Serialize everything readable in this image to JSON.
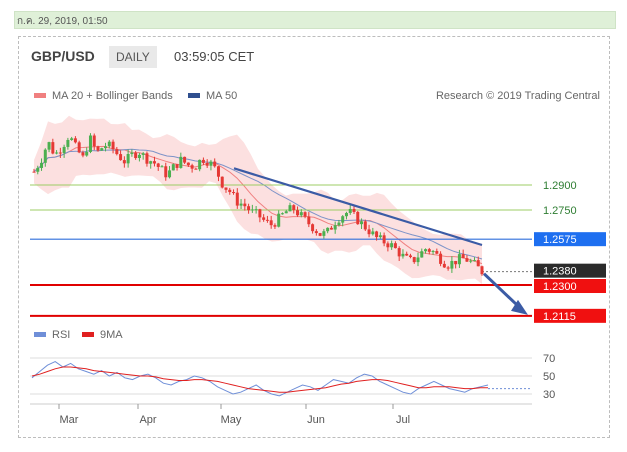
{
  "date_bar": {
    "text": "ก.ค. 29, 2019, 01:50"
  },
  "header": {
    "pair": "GBP/USD",
    "period": "DAILY",
    "time": "03:59:05 CET"
  },
  "legend": {
    "ma20": {
      "label": "MA 20 + Bollinger Bands",
      "color": "#f08080"
    },
    "ma50": {
      "label": "MA 50",
      "color": "#2f4f8f"
    },
    "credit": "Research © 2019 Trading Central"
  },
  "rsi_legend": {
    "rsi": {
      "label": "RSI",
      "color": "#6f8fd8"
    },
    "ma9": {
      "label": "9MA",
      "color": "#e02020"
    }
  },
  "chart_data": {
    "type": "candlestick",
    "xlabel": "",
    "ylabel": "",
    "months": [
      "Mar",
      "Apr",
      "May",
      "Jun",
      "Jul"
    ],
    "levels": [
      {
        "value": "1.2900",
        "kind": "green-line"
      },
      {
        "value": "1.2750",
        "kind": "green-line"
      },
      {
        "value": "1.2575",
        "kind": "blue-line"
      },
      {
        "value": "1.2380",
        "kind": "last-price"
      },
      {
        "value": "1.2300",
        "kind": "red-line"
      },
      {
        "value": "1.2115",
        "kind": "red-line"
      }
    ],
    "colors": {
      "up": "#4caf50",
      "down": "#e53935",
      "trend": "#3b5ba5",
      "band": "#fbd5d5"
    },
    "close_path": [
      1.298,
      1.305,
      1.316,
      1.308,
      1.313,
      1.32,
      1.312,
      1.306,
      1.318,
      1.309,
      1.314,
      1.313,
      1.308,
      1.304,
      1.308,
      1.31,
      1.306,
      1.304,
      1.3,
      1.296,
      1.301,
      1.305,
      1.302,
      1.301,
      1.306,
      1.304,
      1.299,
      1.29,
      1.286,
      1.28,
      1.278,
      1.274,
      1.272,
      1.268,
      1.266,
      1.27,
      1.274,
      1.276,
      1.272,
      1.268,
      1.264,
      1.26,
      1.262,
      1.268,
      1.272,
      1.274,
      1.27,
      1.266,
      1.262,
      1.258,
      1.256,
      1.254,
      1.25,
      1.246,
      1.244,
      1.248,
      1.252,
      1.25,
      1.246,
      1.242,
      1.244,
      1.246,
      1.245,
      1.242,
      1.238
    ],
    "trendline": {
      "from": {
        "month": "May",
        "value": 1.3
      },
      "to": {
        "month": "Jul",
        "value": 1.254
      }
    },
    "projection": {
      "from": 1.238,
      "to": 1.2115
    },
    "rsi": {
      "ticks": [
        "70",
        "50",
        "30"
      ],
      "values": [
        48,
        55,
        62,
        66,
        60,
        64,
        58,
        55,
        52,
        56,
        50,
        54,
        48,
        46,
        50,
        52,
        48,
        42,
        40,
        44,
        46,
        50,
        48,
        44,
        38,
        34,
        30,
        32,
        36,
        40,
        34,
        30,
        28,
        32,
        36,
        40,
        38,
        34,
        40,
        46,
        44,
        42,
        48,
        52,
        50,
        44,
        40,
        36,
        32,
        30,
        36,
        40,
        44,
        40,
        36,
        34,
        32,
        36,
        38,
        40
      ],
      "ma9": [
        50,
        52,
        55,
        58,
        60,
        60,
        59,
        58,
        56,
        55,
        54,
        53,
        52,
        51,
        50,
        50,
        49,
        47,
        46,
        45,
        45,
        46,
        46,
        45,
        44,
        42,
        40,
        38,
        36,
        35,
        34,
        33,
        32,
        32,
        33,
        34,
        35,
        36,
        37,
        39,
        41,
        42,
        44,
        45,
        46,
        46,
        45,
        43,
        41,
        39,
        37,
        37,
        38,
        38,
        38,
        37,
        36,
        36,
        37,
        37
      ]
    }
  }
}
